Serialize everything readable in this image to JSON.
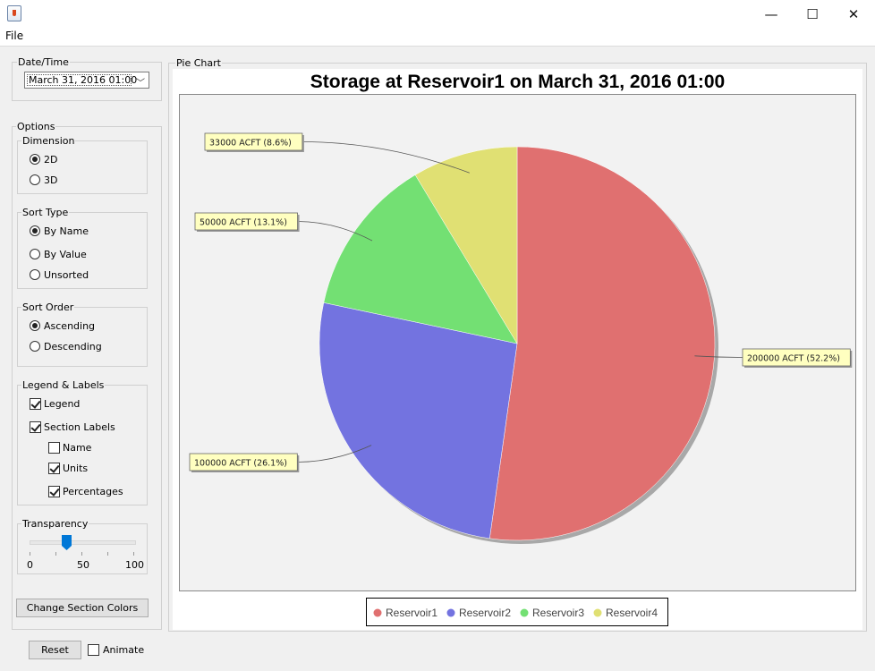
{
  "window": {
    "minimize_glyph": "—",
    "maximize_glyph": "☐",
    "close_glyph": "✕"
  },
  "menu": {
    "file": "File"
  },
  "datetime": {
    "title": "Date/Time",
    "value": "March 31, 2016 01:00"
  },
  "options": {
    "title": "Options",
    "dimension": {
      "title": "Dimension",
      "items": [
        "2D",
        "3D"
      ],
      "selected": "2D"
    },
    "sort_type": {
      "title": "Sort Type",
      "items": [
        "By Name",
        "By Value",
        "Unsorted"
      ],
      "selected": "By Name"
    },
    "sort_order": {
      "title": "Sort Order",
      "items": [
        "Ascending",
        "Descending"
      ],
      "selected": "Ascending"
    },
    "legend_labels": {
      "title": "Legend & Labels",
      "legend": "Legend",
      "section_labels": "Section Labels",
      "name": "Name",
      "units": "Units",
      "percentages": "Percentages",
      "checked": {
        "legend": true,
        "section_labels": true,
        "name": false,
        "units": true,
        "percentages": true
      }
    },
    "transparency": {
      "title": "Transparency",
      "value": 35,
      "ticks": [
        "0",
        "50",
        "100"
      ]
    },
    "change_colors": "Change Section Colors"
  },
  "bottom": {
    "reset": "Reset",
    "animate": "Animate",
    "animate_checked": false
  },
  "chart_panel_title": "Pie Chart",
  "chart_data": {
    "type": "pie",
    "title": "Storage at Reservoir1 on March 31, 2016 01:00",
    "categories": [
      "Reservoir1",
      "Reservoir2",
      "Reservoir3",
      "Reservoir4"
    ],
    "values": [
      200000,
      100000,
      50000,
      33000
    ],
    "percentages": [
      52.2,
      26.1,
      13.1,
      8.6
    ],
    "labels": [
      "200000 ACFT (52.2%)",
      "100000 ACFT (26.1%)",
      "50000 ACFT (13.1%)",
      "33000 ACFT (8.6%)"
    ],
    "colors": [
      "#e07070",
      "#7373e0",
      "#73e073",
      "#e0e073"
    ],
    "legend": "bottom"
  }
}
